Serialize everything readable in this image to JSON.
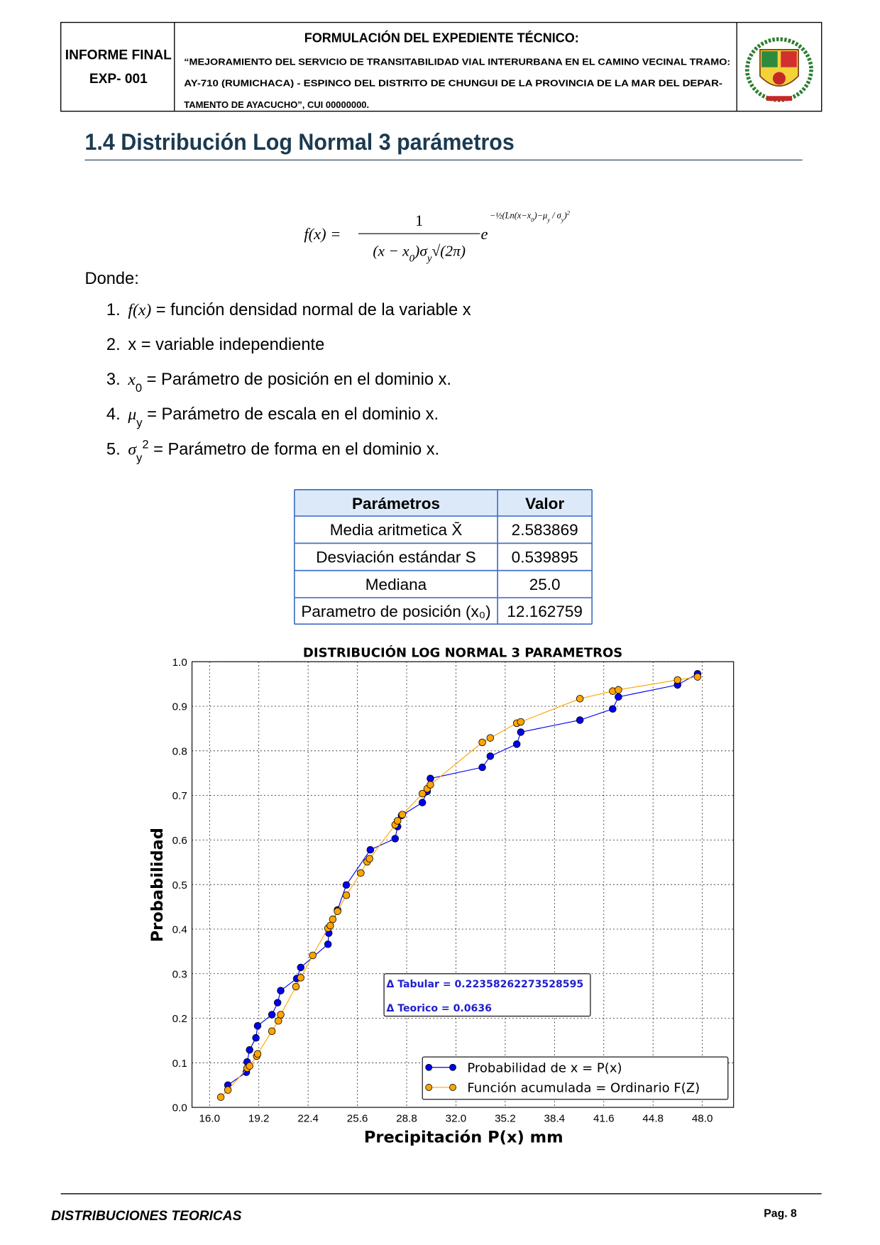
{
  "header": {
    "left": [
      "INFORME FINAL",
      "EXP- 001"
    ],
    "title": "FORMULACIÓN DEL EXPEDIENTE TÉCNICO:",
    "description": [
      "“MEJORAMIENTO DEL SERVICIO DE TRANSITABILIDAD VIAL INTERURBANA EN EL CAMINO VECINAL TRAMO:",
      "AY-710 (RUMICHACA) - ESPINCO DEL DISTRITO DE CHUNGUI DE LA PROVINCIA DE LA MAR DEL DEPAR-",
      "TAMENTO DE AYACUCHO”, CUI 00000000."
    ]
  },
  "section": {
    "title": "1.4  Distribución Log Normal 3 parámetros"
  },
  "formula": {
    "lhs": "f(x) =",
    "numerator": "1",
    "denominator": [
      {
        "t": "(x − x"
      },
      {
        "t": "0",
        "sub": true
      },
      {
        "t": ")σ"
      },
      {
        "t": "y",
        "sub": true
      },
      {
        "t": "√(2π)"
      }
    ],
    "base": "e",
    "exponent": [
      {
        "t": "−½("
      },
      {
        "t": "Ln(x−x"
      },
      {
        "t": "0",
        "sub": true
      },
      {
        "t": ")−μ"
      },
      {
        "t": "y",
        "sub": true
      },
      {
        "t": " / σ"
      },
      {
        "t": "y",
        "sub": true
      },
      {
        "t": ")"
      },
      {
        "t": "2",
        "sup": true
      }
    ]
  },
  "intro": "Donde:",
  "list": [
    {
      "number": "1.",
      "parts": [
        {
          "t": "f(x)",
          "math": true
        },
        {
          "t": " = función densidad normal de la variable x"
        }
      ]
    },
    {
      "number": "2.",
      "parts": [
        {
          "t": "x = variable independiente"
        }
      ]
    },
    {
      "number": "3.",
      "parts": [
        {
          "t": "x",
          "math": true
        },
        {
          "t": "0",
          "sub": true
        },
        {
          "t": " = Parámetro de posición en el dominio x."
        }
      ]
    },
    {
      "number": "4.",
      "parts": [
        {
          "t": "μ",
          "math": true
        },
        {
          "t": "y",
          "sub": true
        },
        {
          "t": " = Parámetro de escala en el dominio x."
        }
      ]
    },
    {
      "number": "5.",
      "parts": [
        {
          "t": "σ",
          "math": true
        },
        {
          "t": "y",
          "sub": true
        },
        {
          "t": "2",
          "sup": true
        },
        {
          "t": " = Parámetro de forma en el dominio x."
        }
      ]
    }
  ],
  "table": {
    "header": [
      "Parámetros",
      "Valor"
    ],
    "rows": [
      [
        "Media aritmetica X̄",
        "2.583869"
      ],
      [
        "Desviación estándar S",
        "0.539895"
      ],
      [
        "Mediana",
        "25.0"
      ],
      [
        "Parametro de posición (x₀)",
        "12.162759"
      ]
    ]
  },
  "chart_data": {
    "type": "line",
    "title": "DISTRIBUCIÓN LOG NORMAL 3 PARAMETROS",
    "x_label": "Precipitación P(x) mm",
    "y_label": "Probabilidad",
    "xlim": [
      14.86,
      50.03
    ],
    "ylim": [
      0,
      1
    ],
    "xticks": [
      {
        "value": 16,
        "label": "16.0"
      },
      19.2,
      22.4,
      25.6,
      28.8,
      {
        "value": 32,
        "label": "32.0"
      },
      35.2,
      38.4,
      41.6,
      44.8,
      {
        "value": 48,
        "label": "48.0"
      }
    ],
    "yticks": [
      {
        "value": 0,
        "label": "0.0"
      },
      0.1,
      0.2,
      0.3,
      0.4,
      0.5,
      0.6,
      0.7,
      0.8,
      0.9,
      {
        "value": 1,
        "label": "1.0"
      }
    ],
    "grid": true,
    "legend": "lower right",
    "annotations": [
      "Δ Tabular = 0.22358262273528595",
      "Δ Teorico = 0.0636"
    ],
    "series": [
      {
        "name": "Probabilidad de x = P(x)",
        "color": "#0000ee",
        "x": [
          17.19,
          18.39,
          18.44,
          18.6,
          19.01,
          19.12,
          20.05,
          20.42,
          20.62,
          21.66,
          21.92,
          23.69,
          23.74,
          24.31,
          24.88,
          26.44,
          28.05,
          28.21,
          28.47,
          29.82,
          30.13,
          30.34,
          33.71,
          34.23,
          35.95,
          36.21,
          40.05,
          42.18,
          42.55,
          46.39,
          47.69
        ],
        "values": [
          0.05,
          0.079,
          0.102,
          0.129,
          0.156,
          0.183,
          0.208,
          0.235,
          0.262,
          0.289,
          0.314,
          0.366,
          0.391,
          0.443,
          0.499,
          0.578,
          0.603,
          0.63,
          0.655,
          0.684,
          0.709,
          0.738,
          0.763,
          0.788,
          0.815,
          0.842,
          0.869,
          0.894,
          0.921,
          0.948,
          0.973
        ]
      },
      {
        "name": "Función acumulada = Ordinario F(Z)",
        "color": "#ffa500",
        "x": [
          16.73,
          17.19,
          18.44,
          18.6,
          19.06,
          19.12,
          20.05,
          20.47,
          20.62,
          21.61,
          21.92,
          22.7,
          23.69,
          23.84,
          24.0,
          24.31,
          24.88,
          25.82,
          26.23,
          26.39,
          28.05,
          28.21,
          28.52,
          29.82,
          30.13,
          30.34,
          33.71,
          34.23,
          35.95,
          36.21,
          40.05,
          42.18,
          42.55,
          46.39,
          47.69
        ],
        "values": [
          0.023,
          0.039,
          0.088,
          0.093,
          0.115,
          0.12,
          0.171,
          0.194,
          0.208,
          0.271,
          0.291,
          0.341,
          0.402,
          0.408,
          0.422,
          0.44,
          0.476,
          0.526,
          0.551,
          0.558,
          0.634,
          0.643,
          0.657,
          0.704,
          0.715,
          0.724,
          0.819,
          0.829,
          0.862,
          0.865,
          0.917,
          0.934,
          0.937,
          0.959,
          0.966
        ]
      }
    ]
  },
  "footer": {
    "left": "DISTRIBUCIONES TEORICAS",
    "right": "Pag. 8"
  }
}
